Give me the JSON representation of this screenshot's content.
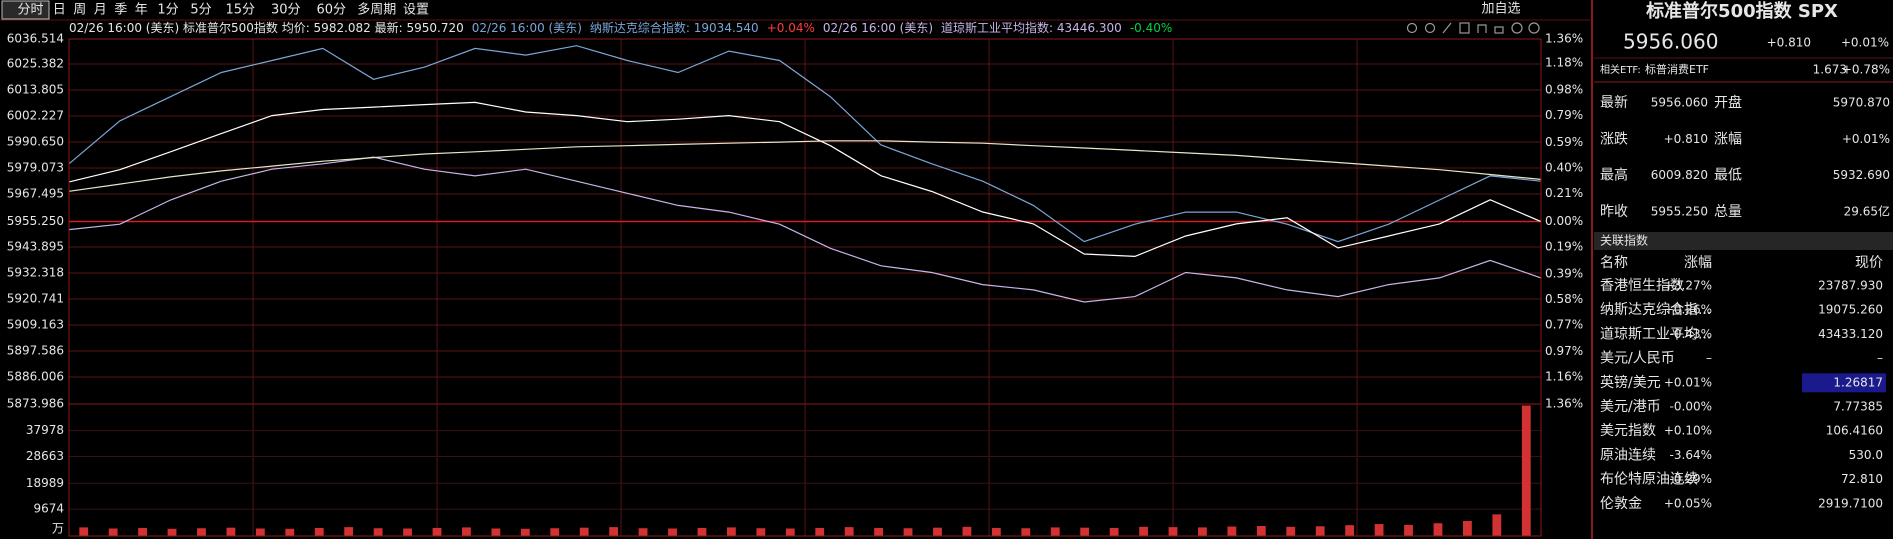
{
  "tabs": [
    "分时",
    "日",
    "周",
    "月",
    "季",
    "年",
    "1分",
    "5分",
    "15分",
    "30分",
    "60分",
    "多周期",
    "设置"
  ],
  "add_watchlist": "加自选",
  "info_bar": [
    {
      "text": "02/26 16:00 (美东) 标准普尔500指数 均价: 5982.082 最新: 5950.720",
      "color": "#e6e6e6"
    },
    {
      "text": "02/26 16:00 (美东)",
      "color": "#7aa6d6"
    },
    {
      "text": "纳斯达克综合指数: 19034.540",
      "color": "#7aa6d6"
    },
    {
      "text": "+0.04%",
      "color": "#ff3c3c"
    },
    {
      "text": "02/26 16:00 (美东)",
      "color": "#c8b4e6"
    },
    {
      "text": "道琼斯工业平均指数: 43446.300",
      "color": "#c8b4e6"
    },
    {
      "text": "-0.40%",
      "color": "#00d23c"
    }
  ],
  "chart_data": [
    {
      "type": "line",
      "ylim": [
        5873.986,
        6036.514
      ],
      "yticks": [
        6036.514,
        6025.382,
        6013.805,
        6002.227,
        {
          "value": 5990.65,
          "label": "5990.650"
        },
        5979.073,
        5967.495,
        {
          "value": 5955.25,
          "label": "5955.250"
        },
        5943.895,
        5932.318,
        5920.741,
        5909.163,
        5897.586,
        5886.006,
        5873.986
      ],
      "y2lim": [
        -1.36,
        1.36
      ],
      "y2ticks": [
        {
          "value": 1.36,
          "label": "1.36%"
        },
        {
          "value": 1.18,
          "label": "1.18%"
        },
        {
          "value": 0.98,
          "label": "0.98%"
        },
        {
          "value": 0.79,
          "label": "0.79%"
        },
        {
          "value": 0.59,
          "label": "0.59%"
        },
        {
          "value": 0.4,
          "label": "0.40%"
        },
        {
          "value": 0.21,
          "label": "0.21%"
        },
        {
          "value": 0,
          "label": "0.00%"
        },
        {
          "value": -0.19,
          "label": "0.19%"
        },
        {
          "value": -0.39,
          "label": "0.39%"
        },
        {
          "value": -0.58,
          "label": "0.58%"
        },
        {
          "value": -0.77,
          "label": "0.77%"
        },
        {
          "value": -0.97,
          "label": "0.97%"
        },
        {
          "value": -1.16,
          "label": "1.16%"
        },
        {
          "value": -1.36,
          "label": "1.36%"
        }
      ],
      "grid": true,
      "series": [
        {
          "color": "#7aa6d6",
          "axis": "y2",
          "values": [
            0.43,
            0.75,
            0.93,
            1.11,
            1.2,
            1.29,
            1.06,
            1.15,
            1.29,
            1.24,
            1.31,
            1.2,
            1.11,
            1.27,
            1.2,
            0.93,
            0.57,
            0.43,
            0.3,
            0.12,
            -0.15,
            -0.02,
            0.07,
            0.07,
            -0.02,
            -0.15,
            -0.02,
            0.16,
            0.34,
            0.3
          ]
        },
        {
          "color": "#c8b4e6",
          "axis": "y2",
          "values": [
            -0.06,
            -0.02,
            0.16,
            0.3,
            0.39,
            0.43,
            0.48,
            0.39,
            0.34,
            0.39,
            0.3,
            0.21,
            0.12,
            0.07,
            -0.02,
            -0.2,
            -0.33,
            -0.38,
            -0.47,
            -0.51,
            -0.6,
            -0.56,
            -0.38,
            -0.42,
            -0.51,
            -0.56,
            -0.47,
            -0.42,
            -0.29,
            -0.42
          ]
        },
        {
          "color": "#e8e6c8",
          "values": [
            5968.7,
            5971.9,
            5975.1,
            5977.8,
            5979.9,
            5982.1,
            5983.7,
            5985.3,
            5986.3,
            5987.4,
            5988.5,
            5989.0,
            5989.6,
            5990.1,
            5990.6,
            5991.2,
            5991.2,
            5990.6,
            5990.1,
            5989.0,
            5988.0,
            5986.9,
            5985.8,
            5984.7,
            5983.1,
            5981.5,
            5979.9,
            5978.3,
            5976.2,
            5974.0
          ]
        },
        {
          "color": "#ffffff",
          "values": [
            5972.9,
            5978.3,
            5986.3,
            5994.4,
            6002.4,
            6005.1,
            6006.2,
            6007.3,
            6008.3,
            6004.0,
            6002.4,
            5999.7,
            6000.8,
            6002.4,
            5999.7,
            5989.0,
            5975.6,
            5968.6,
            5959.5,
            5954.2,
            5940.8,
            5939.7,
            5948.8,
            5954.2,
            5956.9,
            5943.5,
            5948.8,
            5954.2,
            5964.9,
            5955.2
          ]
        }
      ]
    },
    {
      "type": "bar",
      "ylim": [
        0,
        47557
      ],
      "yticks": [
        37978,
        28663,
        18989,
        9674
      ],
      "unit": "万",
      "color": "#d23232",
      "values": [
        3100,
        2700,
        2900,
        2600,
        2800,
        3000,
        2700,
        2600,
        2900,
        3200,
        2800,
        2700,
        2900,
        3100,
        2700,
        2600,
        2800,
        3000,
        3200,
        2800,
        2700,
        2900,
        3100,
        2800,
        2700,
        2900,
        3200,
        2900,
        2800,
        3000,
        3300,
        2900,
        2800,
        3100,
        3000,
        2900,
        3300,
        3200,
        3100,
        3400,
        3600,
        3300,
        3500,
        3900,
        4300,
        4000,
        4600,
        5400,
        7800,
        47000
      ]
    }
  ],
  "quote": {
    "title": "标准普尔500指数 SPX",
    "price": "5956.060",
    "change": "+0.810",
    "change_pct": "+0.01%"
  },
  "etf": {
    "label": "相关ETF:",
    "name": "标普消费ETF",
    "price": "1.673",
    "change_pct": "+0.78%"
  },
  "stats": [
    {
      "cells": [
        "最新",
        "5956.060",
        "开盘",
        "5970.870"
      ],
      "colors": [
        "#ff3c3c",
        "#ff3c3c"
      ]
    },
    {
      "cells": [
        "涨跌",
        "+0.810",
        "涨幅",
        "+0.01%"
      ],
      "colors": [
        "#ff3c3c",
        "#ff3c3c"
      ]
    },
    {
      "cells": [
        "最高",
        "6009.820",
        "最低",
        "5932.690"
      ],
      "colors": [
        "#ff3c3c",
        "#00d23c"
      ]
    },
    {
      "cells": [
        "昨收",
        "5955.250",
        "总量",
        "29.65亿"
      ],
      "colors": [
        "#e6e6e6",
        "#4fc3f7"
      ]
    }
  ],
  "related": {
    "title": "关联指数",
    "columns": [
      "名称",
      "涨幅",
      "现价"
    ],
    "highlight_row": 4,
    "rows": [
      [
        "香港恒生指数",
        "+3.27%",
        "23787.930"
      ],
      [
        "纳斯达克综合指...",
        "+0.26%",
        "19075.260"
      ],
      [
        "道琼斯工业平均...",
        "-0.43%",
        "43433.120"
      ],
      [
        "美元/人民币",
        "–",
        "–"
      ],
      [
        "英镑/美元",
        "+0.01%",
        "1.26817"
      ],
      [
        "美元/港币",
        "-0.00%",
        "7.77385"
      ],
      [
        "美元指数",
        "+0.10%",
        "106.4160"
      ],
      [
        "原油连续",
        "-3.64%",
        "530.0"
      ],
      [
        "布伦特原油连续",
        "-0.29%",
        "72.810"
      ],
      [
        "伦敦金",
        "+0.05%",
        "2919.7100"
      ]
    ]
  }
}
